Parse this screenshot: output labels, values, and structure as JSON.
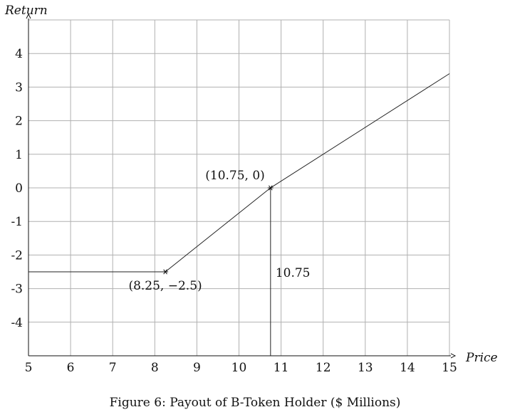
{
  "caption": "Figure 6: Payout of B-Token Holder ($ Millions)",
  "chart_data": {
    "type": "line",
    "xlabel": "Price",
    "ylabel": "Return",
    "xlim": [
      5,
      15
    ],
    "ylim": [
      -5,
      5
    ],
    "xticks": [
      "5",
      "6",
      "7",
      "8",
      "9",
      "10",
      "11",
      "12",
      "13",
      "14",
      "15"
    ],
    "yticks": [
      "4",
      "3",
      "2",
      "1",
      "0",
      "-1",
      "-2",
      "-3",
      "-4"
    ],
    "grid": true,
    "series": [
      {
        "x": [
          5,
          8.25,
          10.75,
          15
        ],
        "y": [
          -2.5,
          -2.5,
          0,
          3.4
        ]
      }
    ],
    "markers": [
      {
        "x": 8.25,
        "y": -2.5,
        "label": "(8.25, −2.5)"
      },
      {
        "x": 10.75,
        "y": 0,
        "label": "(10.75, 0)"
      }
    ],
    "reference_line": {
      "x": 10.75,
      "label": "10.75"
    }
  },
  "colors": {
    "grid": "#b0b0b0",
    "line": "#222222"
  }
}
